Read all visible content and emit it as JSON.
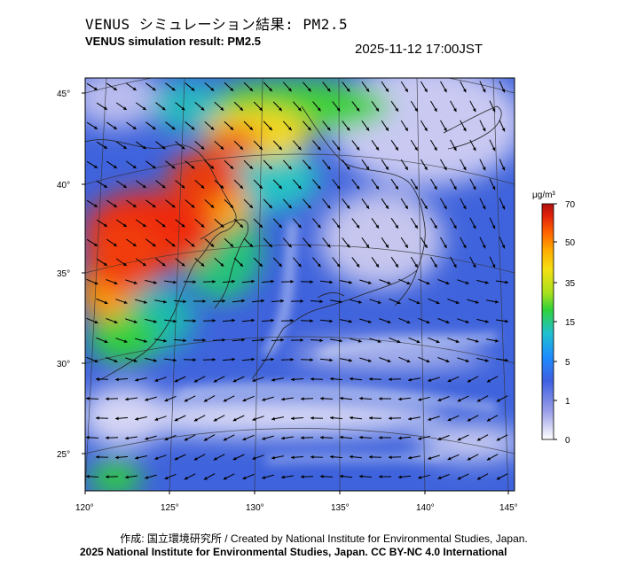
{
  "header": {
    "title_jp": "VENUS シミュレーション結果: PM2.5",
    "title_en": "VENUS simulation result: PM2.5",
    "datetime": "2025-11-12 17:00JST"
  },
  "map": {
    "lat_labels": [
      "45°",
      "40°",
      "35°",
      "30°",
      "25°"
    ],
    "lon_labels": [
      "120°",
      "125°",
      "130°",
      "135°",
      "140°",
      "145°"
    ],
    "lat_range": [
      23,
      46
    ],
    "lon_range": [
      120,
      145
    ]
  },
  "colorbar": {
    "unit": "μg/m³",
    "ticks": [
      "70",
      "50",
      "35",
      "15",
      "5",
      "1",
      "0"
    ],
    "colors": [
      "#ffffff",
      "#8f94e6",
      "#2f5fe0",
      "#1fa0ff",
      "#22c6c6",
      "#32d232",
      "#9be01e",
      "#f5e514",
      "#ffb000",
      "#ff6a00",
      "#e21d0a",
      "#b01010"
    ]
  },
  "footer": {
    "credit_line1": "作成: 国立環境研究所 / Created by National Institute for Environmental Studies, Japan.",
    "credit_line2": "2025 National Institute for Environmental Studies, Japan. CC BY-NC 4.0 International"
  }
}
